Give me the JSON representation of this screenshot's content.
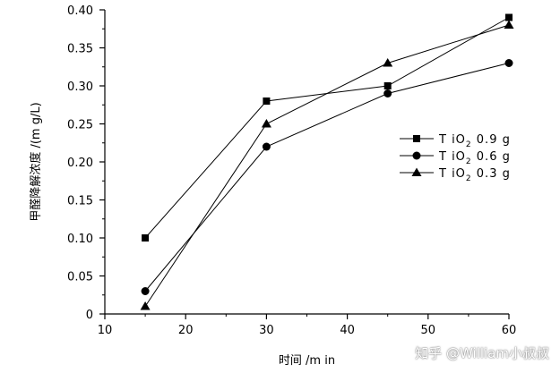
{
  "chart_data": {
    "type": "line",
    "title": "",
    "xlabel": "时间 /m in",
    "ylabel": "甲醛降解浓度 /(m g/L)",
    "x": [
      15,
      30,
      45,
      60
    ],
    "xlim": [
      10,
      60
    ],
    "ylim": [
      0,
      0.4
    ],
    "xticks": [
      10,
      20,
      30,
      40,
      50,
      60
    ],
    "yticks": [
      0,
      0.05,
      0.1,
      0.15,
      0.2,
      0.25,
      0.3,
      0.35,
      0.4
    ],
    "xtick_labels": [
      "10",
      "20",
      "30",
      "40",
      "50",
      "60"
    ],
    "ytick_labels": [
      "0",
      "0.05",
      "0.10",
      "0.15",
      "0.20",
      "0.25",
      "0.30",
      "0.35",
      "0.40"
    ],
    "grid": false,
    "legend_position": "right",
    "series": [
      {
        "name": "TiO2 0.9 g",
        "label_main": "T iO",
        "label_sub": "2",
        "label_tail": " 0.9 g",
        "marker": "square",
        "values": [
          0.1,
          0.28,
          0.3,
          0.39
        ]
      },
      {
        "name": "TiO2 0.6 g",
        "label_main": "T iO",
        "label_sub": "2",
        "label_tail": " 0.6 g",
        "marker": "circle",
        "values": [
          0.03,
          0.22,
          0.29,
          0.33
        ]
      },
      {
        "name": "TiO2 0.3 g",
        "label_main": "T iO",
        "label_sub": "2",
        "label_tail": " 0.3 g",
        "marker": "triangle",
        "values": [
          0.01,
          0.25,
          0.33,
          0.38
        ]
      }
    ],
    "color": "#000000"
  },
  "watermark": "知乎 @William小叔叔"
}
